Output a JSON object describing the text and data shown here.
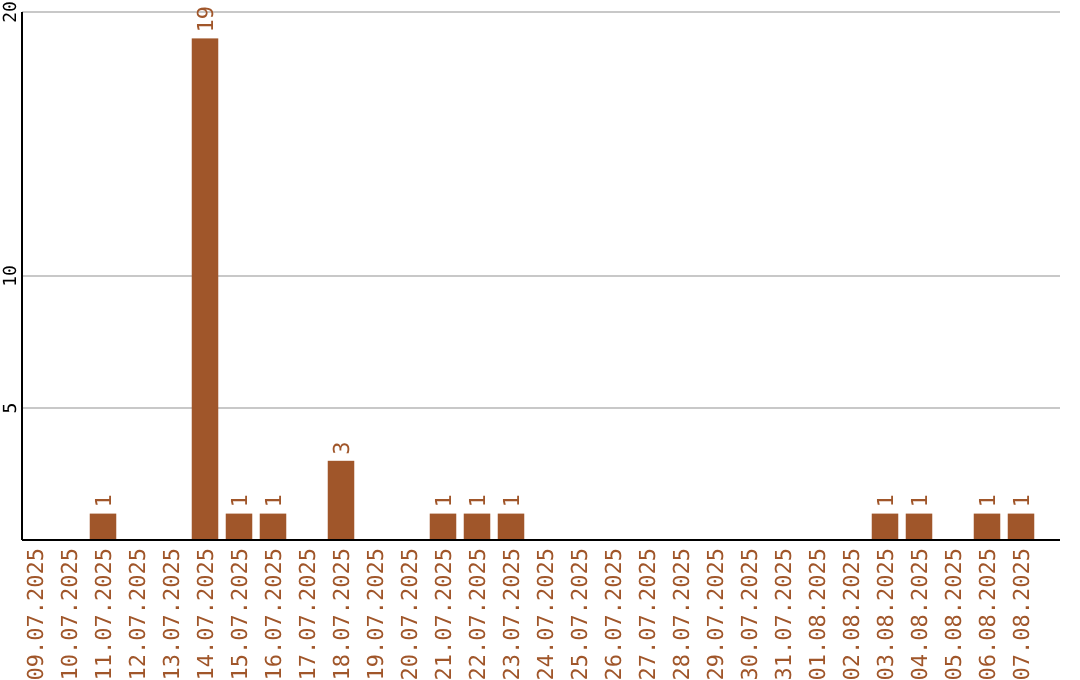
{
  "chart_data": {
    "type": "bar",
    "categories": [
      "09.07.2025",
      "10.07.2025",
      "11.07.2025",
      "12.07.2025",
      "13.07.2025",
      "14.07.2025",
      "15.07.2025",
      "16.07.2025",
      "17.07.2025",
      "18.07.2025",
      "19.07.2025",
      "20.07.2025",
      "21.07.2025",
      "22.07.2025",
      "23.07.2025",
      "24.07.2025",
      "25.07.2025",
      "26.07.2025",
      "27.07.2025",
      "28.07.2025",
      "29.07.2025",
      "30.07.2025",
      "31.07.2025",
      "01.08.2025",
      "02.08.2025",
      "03.08.2025",
      "04.08.2025",
      "05.08.2025",
      "06.08.2025",
      "07.08.2025"
    ],
    "values": [
      0,
      0,
      1,
      0,
      0,
      19,
      1,
      1,
      0,
      3,
      0,
      0,
      1,
      1,
      1,
      0,
      0,
      0,
      0,
      0,
      0,
      0,
      0,
      0,
      0,
      1,
      1,
      0,
      1,
      1
    ],
    "value_labels": [
      null,
      null,
      "1",
      null,
      null,
      "19",
      "1",
      "1",
      null,
      "3",
      null,
      null,
      "1",
      "1",
      "1",
      null,
      null,
      null,
      null,
      null,
      null,
      null,
      null,
      null,
      null,
      "1",
      "1",
      null,
      "1",
      "1"
    ],
    "color": "#a0562a",
    "ylim": [
      0,
      20
    ],
    "yticks": [
      5,
      10,
      20
    ],
    "grid": "y"
  }
}
